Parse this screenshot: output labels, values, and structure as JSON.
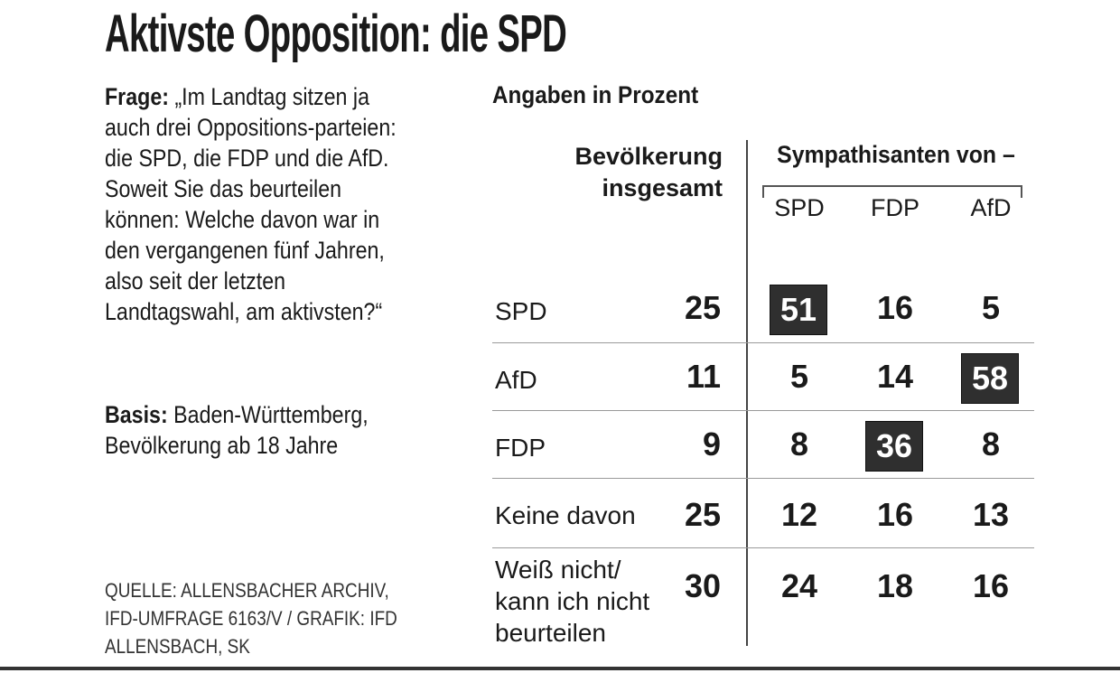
{
  "title": "Aktivste Opposition: die SPD",
  "question": {
    "label": "Frage:",
    "text": "„Im Landtag sitzen ja auch drei Oppositions-parteien: die SPD, die FDP und die AfD. Soweit Sie das beurteilen können: Welche davon war in den vergangenen fünf Jahren, also seit der letzten Landtagswahl, am aktivsten?“"
  },
  "basis": {
    "label": "Basis:",
    "text": "Baden-Württemberg, Bevölkerung ab 18 Jahre"
  },
  "source": "QUELLE: ALLENSBACHER ARCHIV, IFD-UMFRAGE 6163/V / GRAFIK: IFD ALLENSBACH, SK",
  "unit_label": "Angaben in Prozent",
  "colors": {
    "highlight_bg": "#2f2f2f",
    "highlight_text": "#ffffff",
    "text": "#1a1a1a"
  },
  "chart_data": {
    "type": "table",
    "title": "Aktivste Opposition: die SPD",
    "columns": {
      "total_header": "Bevölkerung insgesamt",
      "group_header": "Sympathisanten von –",
      "groups": [
        "SPD",
        "FDP",
        "AfD"
      ]
    },
    "rows": [
      {
        "label": "SPD",
        "total": 25,
        "values": [
          51,
          16,
          5
        ],
        "highlight": [
          0
        ]
      },
      {
        "label": "AfD",
        "total": 11,
        "values": [
          5,
          14,
          58
        ],
        "highlight": [
          2
        ]
      },
      {
        "label": "FDP",
        "total": 9,
        "values": [
          8,
          36,
          8
        ],
        "highlight": [
          1
        ]
      },
      {
        "label": "Keine davon",
        "total": 25,
        "values": [
          12,
          16,
          13
        ],
        "highlight": []
      },
      {
        "label": "Weiß nicht/ kann ich nicht beurteilen",
        "total": 30,
        "values": [
          24,
          18,
          16
        ],
        "highlight": []
      }
    ]
  }
}
